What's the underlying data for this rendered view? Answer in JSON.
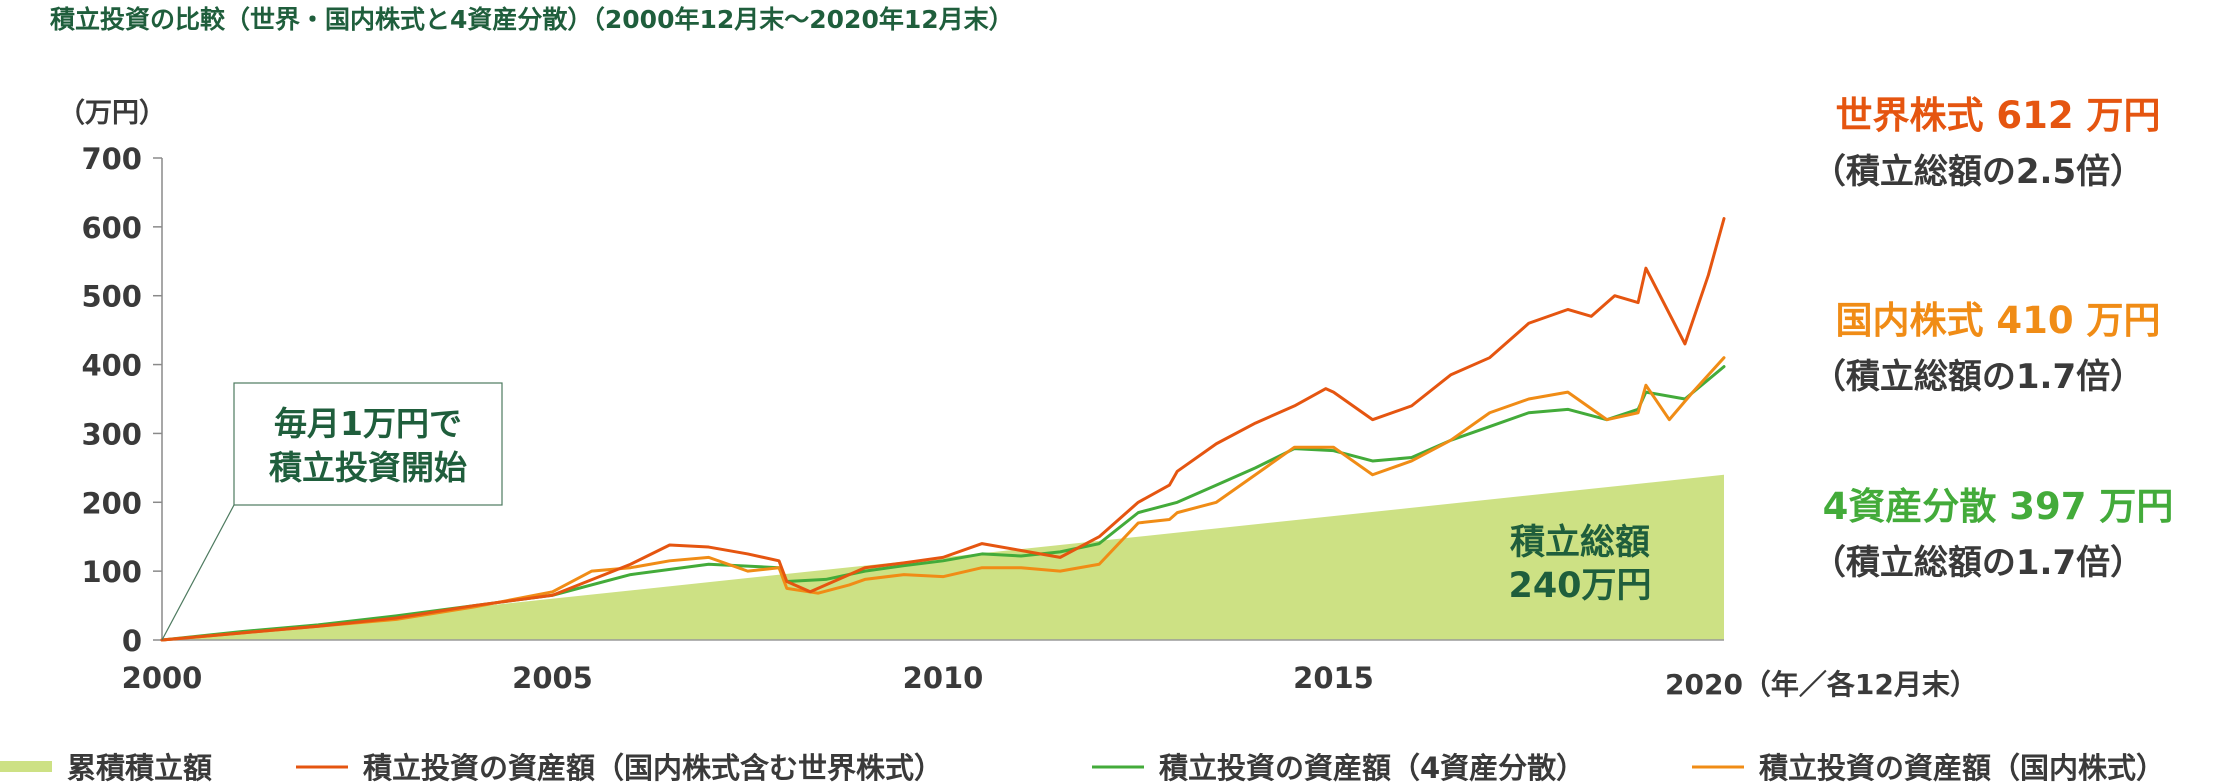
{
  "chart_data": {
    "type": "line",
    "title": "積立投資の比較（世界・国内株式と4資産分散）（2000年12月末〜2020年12月末）",
    "ylabel": "（万円）",
    "xlabel": "（年／各12月末）",
    "ylim": [
      0,
      700
    ],
    "yticks": [
      "0",
      "100",
      "200",
      "300",
      "400",
      "500",
      "600",
      "700"
    ],
    "ytick_values": [
      0,
      100,
      200,
      300,
      400,
      500,
      600,
      700
    ],
    "xlim": [
      2000,
      2020
    ],
    "xticks": [
      "2000",
      "2005",
      "2010",
      "2015",
      "2020"
    ],
    "xtick_values": [
      2000,
      2005,
      2010,
      2015,
      2020
    ],
    "colors": {
      "world": "#e55510",
      "domestic": "#f08c16",
      "four_asset": "#43ab3a",
      "total": "#cde184",
      "text": "#3a3a3a",
      "green_text": "#1f5e3c"
    },
    "series": [
      {
        "name": "累積積立額",
        "key": "total",
        "type": "area",
        "x": [
          2000,
          2020
        ],
        "values": [
          0,
          240
        ]
      },
      {
        "name": "積立投資の資産額（国内株式含む世界株式）",
        "key": "world",
        "x": [
          2000,
          2001,
          2002,
          2003,
          2004,
          2005,
          2006,
          2006.5,
          2007,
          2007.5,
          2007.9,
          2008,
          2008.3,
          2008.6,
          2009,
          2009.5,
          2010,
          2010.5,
          2011,
          2011.5,
          2012,
          2012.5,
          2012.9,
          2013,
          2013.5,
          2014,
          2014.5,
          2014.9,
          2015,
          2015.5,
          2016,
          2016.5,
          2017,
          2017.5,
          2018,
          2018.3,
          2018.6,
          2018.9,
          2019,
          2019.5,
          2019.8,
          2020
        ],
        "values": [
          0,
          10,
          20,
          32,
          50,
          65,
          110,
          138,
          135,
          125,
          115,
          85,
          70,
          85,
          105,
          112,
          120,
          140,
          130,
          120,
          150,
          200,
          225,
          245,
          285,
          315,
          340,
          365,
          360,
          320,
          340,
          385,
          410,
          460,
          480,
          470,
          500,
          490,
          540,
          430,
          530,
          612
        ]
      },
      {
        "name": "積立投資の資産額（4資産分散）",
        "key": "four_asset",
        "x": [
          2000,
          2001,
          2002,
          2003,
          2004,
          2005,
          2006,
          2007,
          2007.9,
          2008,
          2008.5,
          2009,
          2009.5,
          2010,
          2010.5,
          2011,
          2011.5,
          2012,
          2012.5,
          2013,
          2013.5,
          2014,
          2014.5,
          2015,
          2015.5,
          2016,
          2016.5,
          2017,
          2017.5,
          2018,
          2018.5,
          2018.9,
          2019,
          2019.5,
          2020
        ],
        "values": [
          0,
          12,
          22,
          35,
          50,
          65,
          95,
          110,
          105,
          85,
          88,
          100,
          108,
          115,
          125,
          122,
          128,
          140,
          185,
          200,
          225,
          250,
          278,
          275,
          260,
          265,
          290,
          310,
          330,
          335,
          320,
          335,
          360,
          350,
          397
        ]
      },
      {
        "name": "積立投資の資産額（国内株式）",
        "key": "domestic",
        "x": [
          2000,
          2001,
          2002,
          2003,
          2004,
          2005,
          2005.5,
          2006,
          2006.5,
          2007,
          2007.5,
          2007.9,
          2008,
          2008.4,
          2008.8,
          2009,
          2009.5,
          2010,
          2010.5,
          2011,
          2011.5,
          2012,
          2012.5,
          2012.9,
          2013,
          2013.5,
          2014,
          2014.5,
          2015,
          2015.5,
          2016,
          2016.5,
          2017,
          2017.5,
          2018,
          2018.5,
          2018.9,
          2019,
          2019.3,
          2019.6,
          2020
        ],
        "values": [
          0,
          10,
          20,
          30,
          48,
          70,
          100,
          105,
          115,
          120,
          100,
          105,
          75,
          68,
          80,
          88,
          95,
          92,
          105,
          105,
          100,
          110,
          170,
          175,
          185,
          200,
          240,
          280,
          280,
          240,
          260,
          290,
          330,
          350,
          360,
          320,
          330,
          370,
          320,
          360,
          410
        ]
      }
    ],
    "annotations": {
      "start_note": [
        "毎月1万円で",
        "積立投資開始"
      ],
      "total_label": [
        "積立総額",
        "240万円"
      ],
      "end_labels": [
        {
          "key": "world",
          "name": "世界株式",
          "value": "612",
          "unit": "万円",
          "ratio": "（積立総額の2.5倍）"
        },
        {
          "key": "domestic",
          "name": "国内株式",
          "value": "410",
          "unit": "万円",
          "ratio": "（積立総額の1.7倍）"
        },
        {
          "key": "four_asset",
          "name": "4資産分散",
          "value": "397",
          "unit": "万円",
          "ratio": "（積立総額の1.7倍）"
        }
      ]
    },
    "legend": {
      "placement": "bottom",
      "items": [
        {
          "key": "total",
          "label": "累積積立額"
        },
        {
          "key": "world",
          "label": "積立投資の資産額（国内株式含む世界株式）"
        },
        {
          "key": "four_asset",
          "label": "積立投資の資産額（4資産分散）"
        },
        {
          "key": "domestic",
          "label": "積立投資の資産額（国内株式）"
        }
      ]
    }
  }
}
